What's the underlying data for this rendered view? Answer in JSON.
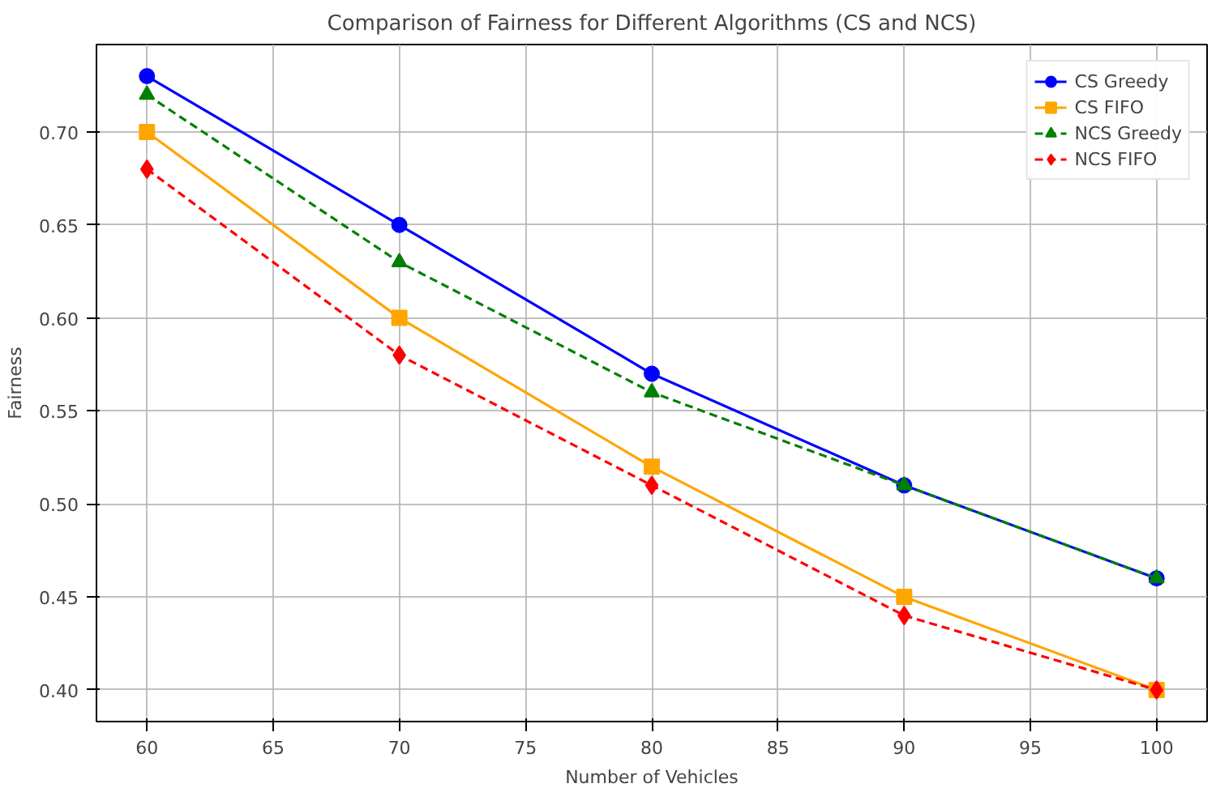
{
  "chart_data": {
    "type": "line",
    "title": "Comparison of Fairness for Different Algorithms (CS and NCS)",
    "xlabel": "Number of Vehicles",
    "ylabel": "Fairness",
    "x": [
      60,
      70,
      80,
      90,
      100
    ],
    "series": [
      {
        "name": "CS Greedy",
        "color": "#0000ff",
        "marker": "circle",
        "line_style": "solid",
        "values": [
          0.73,
          0.65,
          0.57,
          0.51,
          0.46
        ]
      },
      {
        "name": "CS FIFO",
        "color": "#ffa500",
        "marker": "square",
        "line_style": "solid",
        "values": [
          0.7,
          0.6,
          0.52,
          0.45,
          0.4
        ]
      },
      {
        "name": "NCS Greedy",
        "color": "#008000",
        "marker": "triangle",
        "line_style": "dashed",
        "values": [
          0.72,
          0.63,
          0.56,
          0.51,
          0.46
        ]
      },
      {
        "name": "NCS FIFO",
        "color": "#ff0000",
        "marker": "diamond",
        "line_style": "dashed",
        "values": [
          0.68,
          0.58,
          0.51,
          0.44,
          0.4
        ]
      }
    ],
    "xlim": [
      58,
      102
    ],
    "ylim": [
      0.383,
      0.747
    ],
    "xticks": [
      60,
      65,
      70,
      75,
      80,
      85,
      90,
      95,
      100
    ],
    "yticks": [
      {
        "value": 0.4,
        "label": "0.40"
      },
      {
        "value": 0.45,
        "label": "0.45"
      },
      {
        "value": 0.5,
        "label": "0.50"
      },
      {
        "value": 0.55,
        "label": "0.55"
      },
      {
        "value": 0.6,
        "label": "0.60"
      },
      {
        "value": 0.65,
        "label": "0.65"
      },
      {
        "value": 0.7,
        "label": "0.70"
      }
    ],
    "grid": true,
    "legend": "top right"
  }
}
